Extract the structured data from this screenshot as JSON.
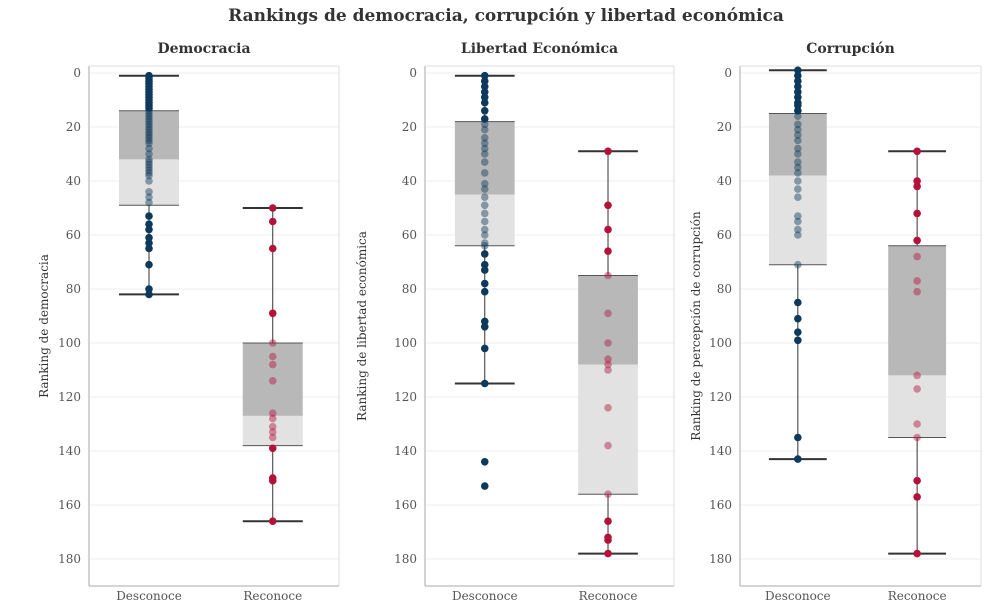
{
  "chart_data": {
    "type": "boxplot",
    "title": "Rankings de democracia, corrupción y libertad económica",
    "categories": [
      "Desconoce",
      "Reconoce"
    ],
    "y_ticks": [
      0,
      20,
      40,
      60,
      80,
      100,
      120,
      140,
      160,
      180
    ],
    "ylim": [
      0,
      189
    ],
    "y_reversed": true,
    "colors": {
      "desconoce": "#0d3a5c",
      "reconoce": "#b5123b",
      "box_upper": "#b8b8b8",
      "box_lower": "#e2e2e2",
      "whisker": "#333333",
      "grid": "#eeeeee",
      "axis": "#aaaaaa"
    },
    "panels": [
      {
        "name": "Democracia",
        "ylabel": "Ranking de democracia",
        "groups": [
          {
            "category": "Desconoce",
            "min": 1,
            "q1": 14,
            "median": 32,
            "q3": 49,
            "max": 82,
            "points": [
              1,
              2,
              3,
              4,
              5,
              6,
              7,
              8,
              9,
              10,
              11,
              12,
              13,
              14,
              15,
              16,
              17,
              18,
              19,
              20,
              21,
              22,
              23,
              24,
              25,
              26,
              28,
              30,
              32,
              33,
              34,
              35,
              36,
              37,
              38,
              40,
              44,
              46,
              48,
              53,
              56,
              58,
              61,
              63,
              65,
              71,
              80,
              82
            ]
          },
          {
            "category": "Reconoce",
            "min": 50,
            "q1": 100,
            "median": 127,
            "q3": 138,
            "max": 166,
            "points": [
              50,
              55,
              65,
              89,
              100,
              105,
              108,
              114,
              126,
              128,
              131,
              133,
              135,
              139,
              150,
              151,
              166
            ]
          }
        ]
      },
      {
        "name": "Libertad Económica",
        "ylabel": "Ranking de libertad económica",
        "groups": [
          {
            "category": "Desconoce",
            "min": 1,
            "q1": 18,
            "median": 45,
            "q3": 64,
            "max": 115,
            "points": [
              1,
              3,
              5,
              7,
              9,
              11,
              14,
              17,
              19,
              21,
              24,
              26,
              28,
              30,
              33,
              37,
              41,
              43,
              46,
              49,
              52,
              55,
              58,
              60,
              63,
              64,
              67,
              71,
              73,
              78,
              81,
              92,
              94,
              102,
              115,
              144,
              153
            ]
          },
          {
            "category": "Reconoce",
            "min": 29,
            "q1": 75,
            "median": 108,
            "q3": 156,
            "max": 178,
            "points": [
              29,
              49,
              58,
              66,
              75,
              89,
              100,
              106,
              108,
              110,
              124,
              138,
              156,
              166,
              172,
              173,
              178
            ]
          }
        ]
      },
      {
        "name": "Corrupción",
        "ylabel": "Ranking de percepción de corrupción",
        "groups": [
          {
            "category": "Desconoce",
            "min": -1,
            "q1": 15,
            "median": 38,
            "q3": 71,
            "max": 143,
            "points": [
              -1,
              1,
              3,
              5,
              7,
              9,
              11,
              12,
              14,
              16,
              19,
              21,
              23,
              25,
              28,
              30,
              33,
              35,
              37,
              40,
              43,
              46,
              53,
              55,
              58,
              60,
              71,
              85,
              91,
              96,
              99,
              135,
              143
            ]
          },
          {
            "category": "Reconoce",
            "min": 29,
            "q1": 64,
            "median": 112,
            "q3": 135,
            "max": 178,
            "points": [
              29,
              40,
              42,
              52,
              62,
              68,
              77,
              81,
              112,
              117,
              130,
              135,
              151,
              157,
              178
            ]
          }
        ]
      }
    ]
  }
}
